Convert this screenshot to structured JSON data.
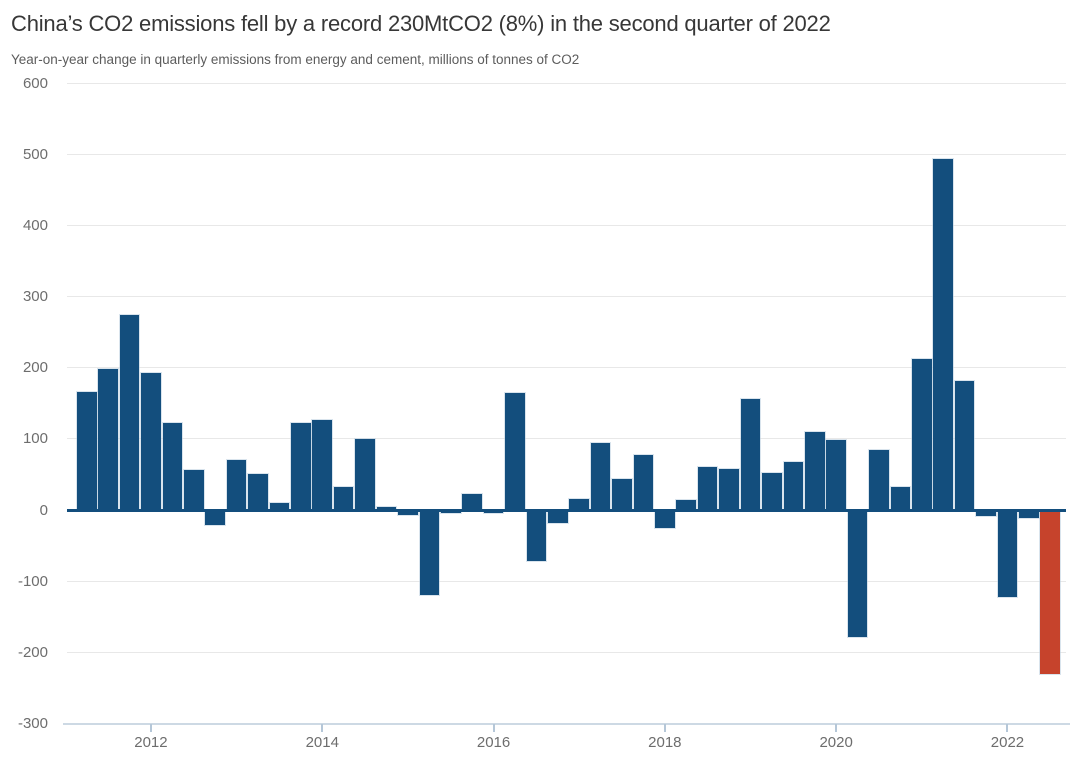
{
  "chart_data": {
    "type": "bar",
    "title": "China’s CO2 emissions fell by a record 230MtCO2 (8%) in the second quarter of 2022",
    "subtitle": "Year-on-year change in quarterly emissions from energy and cement, millions of tonnes of CO2",
    "categories": [
      "2011 Q1",
      "2011 Q2",
      "2011 Q3",
      "2011 Q4",
      "2012 Q1",
      "2012 Q2",
      "2012 Q3",
      "2012 Q4",
      "2013 Q1",
      "2013 Q2",
      "2013 Q3",
      "2013 Q4",
      "2014 Q1",
      "2014 Q2",
      "2014 Q3",
      "2014 Q4",
      "2015 Q1",
      "2015 Q2",
      "2015 Q3",
      "2015 Q4",
      "2016 Q1",
      "2016 Q2",
      "2016 Q3",
      "2016 Q4",
      "2017 Q1",
      "2017 Q2",
      "2017 Q3",
      "2017 Q4",
      "2018 Q1",
      "2018 Q2",
      "2018 Q3",
      "2018 Q4",
      "2019 Q1",
      "2019 Q2",
      "2019 Q3",
      "2019 Q4",
      "2020 Q1",
      "2020 Q2",
      "2020 Q3",
      "2020 Q4",
      "2021 Q1",
      "2021 Q2",
      "2021 Q3",
      "2021 Q4",
      "2022 Q1",
      "2022 Q2"
    ],
    "values": [
      166,
      198,
      274,
      193,
      123,
      56,
      -21,
      70,
      50,
      10,
      123,
      127,
      32,
      100,
      4,
      -7,
      -120,
      -4,
      23,
      -4,
      165,
      -72,
      -18,
      16,
      94,
      43,
      77,
      -26,
      14,
      61,
      58,
      156,
      52,
      68,
      110,
      99,
      -178,
      84,
      33,
      213,
      493,
      181,
      -8,
      -123,
      -11,
      -230
    ],
    "highlight_index": 45,
    "highlight_value": -230,
    "ylim": [
      -300,
      600
    ],
    "yticks": [
      "600",
      "500",
      "400",
      "300",
      "200",
      "100",
      "0",
      "-100",
      "-200",
      "-300"
    ],
    "xticks": [
      "2012",
      "2014",
      "2016",
      "2018",
      "2020",
      "2022"
    ],
    "grid": "horizontal",
    "legend": "none",
    "colors": {
      "bar": "#134e7d",
      "highlight": "#c6432c",
      "zero_line": "#134e7d",
      "gridline": "#e8e8e8",
      "axis_line": "#cdd9e4",
      "tick_mark": "#b5c7d8",
      "axis_label": "#6d6d6d",
      "title": "#373737",
      "subtitle": "#5c5c5c"
    }
  }
}
